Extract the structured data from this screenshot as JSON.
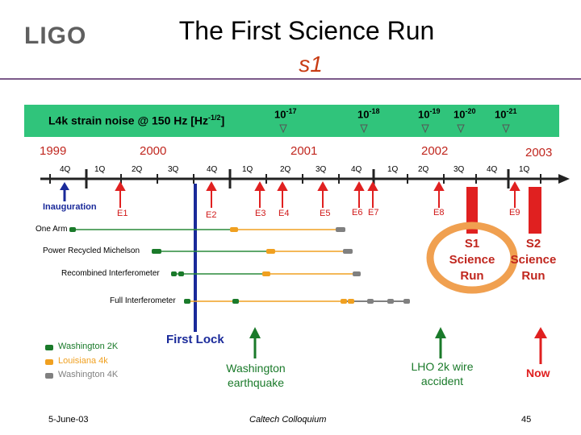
{
  "header": {
    "logo": "LIGO",
    "title": "The First Science Run",
    "subtitle": "s1"
  },
  "banner": {
    "label": "L4k strain noise @ 150 Hz  [Hz",
    "label_exp": "-1/2",
    "label_end": "]",
    "noise_levels": [
      {
        "base": "10",
        "exp": "-17"
      },
      {
        "base": "10",
        "exp": "-18"
      },
      {
        "base": "10",
        "exp": "-19"
      },
      {
        "base": "10",
        "exp": "-20"
      },
      {
        "base": "10",
        "exp": "-21"
      }
    ]
  },
  "timeline": {
    "years": [
      "1999",
      "2000",
      "2001",
      "2002",
      "2003"
    ],
    "quarters": [
      "4Q",
      "1Q",
      "2Q",
      "3Q",
      "4Q",
      "1Q",
      "2Q",
      "3Q",
      "4Q",
      "1Q",
      "2Q",
      "3Q",
      "4Q",
      "1Q"
    ],
    "events": [
      "E1",
      "E2",
      "E3",
      "E4",
      "E5",
      "E6",
      "E7",
      "E8",
      "E9"
    ],
    "inauguration": "Inauguration",
    "programs": [
      "One Arm",
      "Power Recycled Michelson",
      "Recombined Interferometer",
      "Full Interferometer"
    ],
    "runs": [
      {
        "id": "S1",
        "line1": "S1",
        "line2": "Science",
        "line3": "Run"
      },
      {
        "id": "S2",
        "line1": "S2",
        "line2": "Science",
        "line3": "Run"
      }
    ],
    "first_lock": "First Lock",
    "annotations": [
      {
        "line1": "Washington",
        "line2": "earthquake"
      },
      {
        "line1": "LHO 2k wire",
        "line2": "accident"
      },
      {
        "line1": "Now",
        "line2": ""
      }
    ]
  },
  "legend": [
    {
      "label": "Washington 2K",
      "color": "#1a7a2a"
    },
    {
      "label": "Louisiana 4k",
      "color": "#f0a020"
    },
    {
      "label": "Washington 4K",
      "color": "#808080"
    }
  ],
  "colors": {
    "banner": "#30c47b",
    "washington2k": "#1a7a2a",
    "louisiana4k": "#f0a020",
    "washington4k": "#808080",
    "event": "#e02020",
    "inauguration": "#1a2a9a"
  },
  "footer": {
    "date": "5-June-03",
    "venue": "Caltech Colloquium",
    "page": "45"
  }
}
